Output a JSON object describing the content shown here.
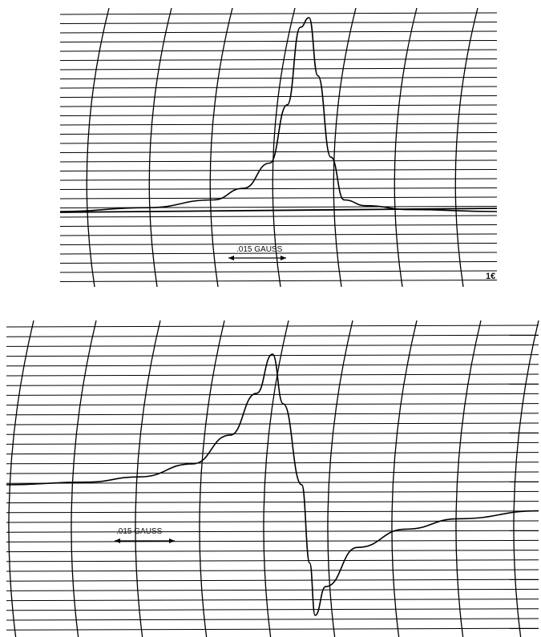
{
  "chart_data": [
    {
      "type": "line",
      "shape": "absorption-peak",
      "scale_label": ".015 GAUSS",
      "corner_note": "",
      "edge_mark": "1€",
      "grid": "strip-chart (horizontal lines + curved vertical arcs)",
      "x": [
        0.0,
        0.2,
        0.35,
        0.42,
        0.48,
        0.52,
        0.55,
        0.57,
        0.59,
        0.62,
        0.65,
        0.7,
        0.8,
        1.0
      ],
      "y": [
        0.0,
        0.02,
        0.06,
        0.12,
        0.25,
        0.55,
        0.95,
        1.0,
        0.7,
        0.28,
        0.06,
        0.03,
        0.01,
        0.0
      ]
    },
    {
      "type": "line",
      "shape": "dispersion-derivative",
      "scale_label": ".015 GAUSS",
      "corner_note": "",
      "grid": "strip-chart (horizontal lines + curved vertical arcs)",
      "x": [
        0.0,
        0.15,
        0.25,
        0.35,
        0.42,
        0.47,
        0.5,
        0.52,
        0.555,
        0.57,
        0.58,
        0.6,
        0.66,
        0.75,
        0.85,
        1.0
      ],
      "y": [
        0.0,
        0.02,
        0.06,
        0.16,
        0.38,
        0.7,
        1.0,
        0.62,
        0.0,
        -0.6,
        -1.0,
        -0.78,
        -0.48,
        -0.34,
        -0.26,
        -0.2
      ]
    }
  ]
}
